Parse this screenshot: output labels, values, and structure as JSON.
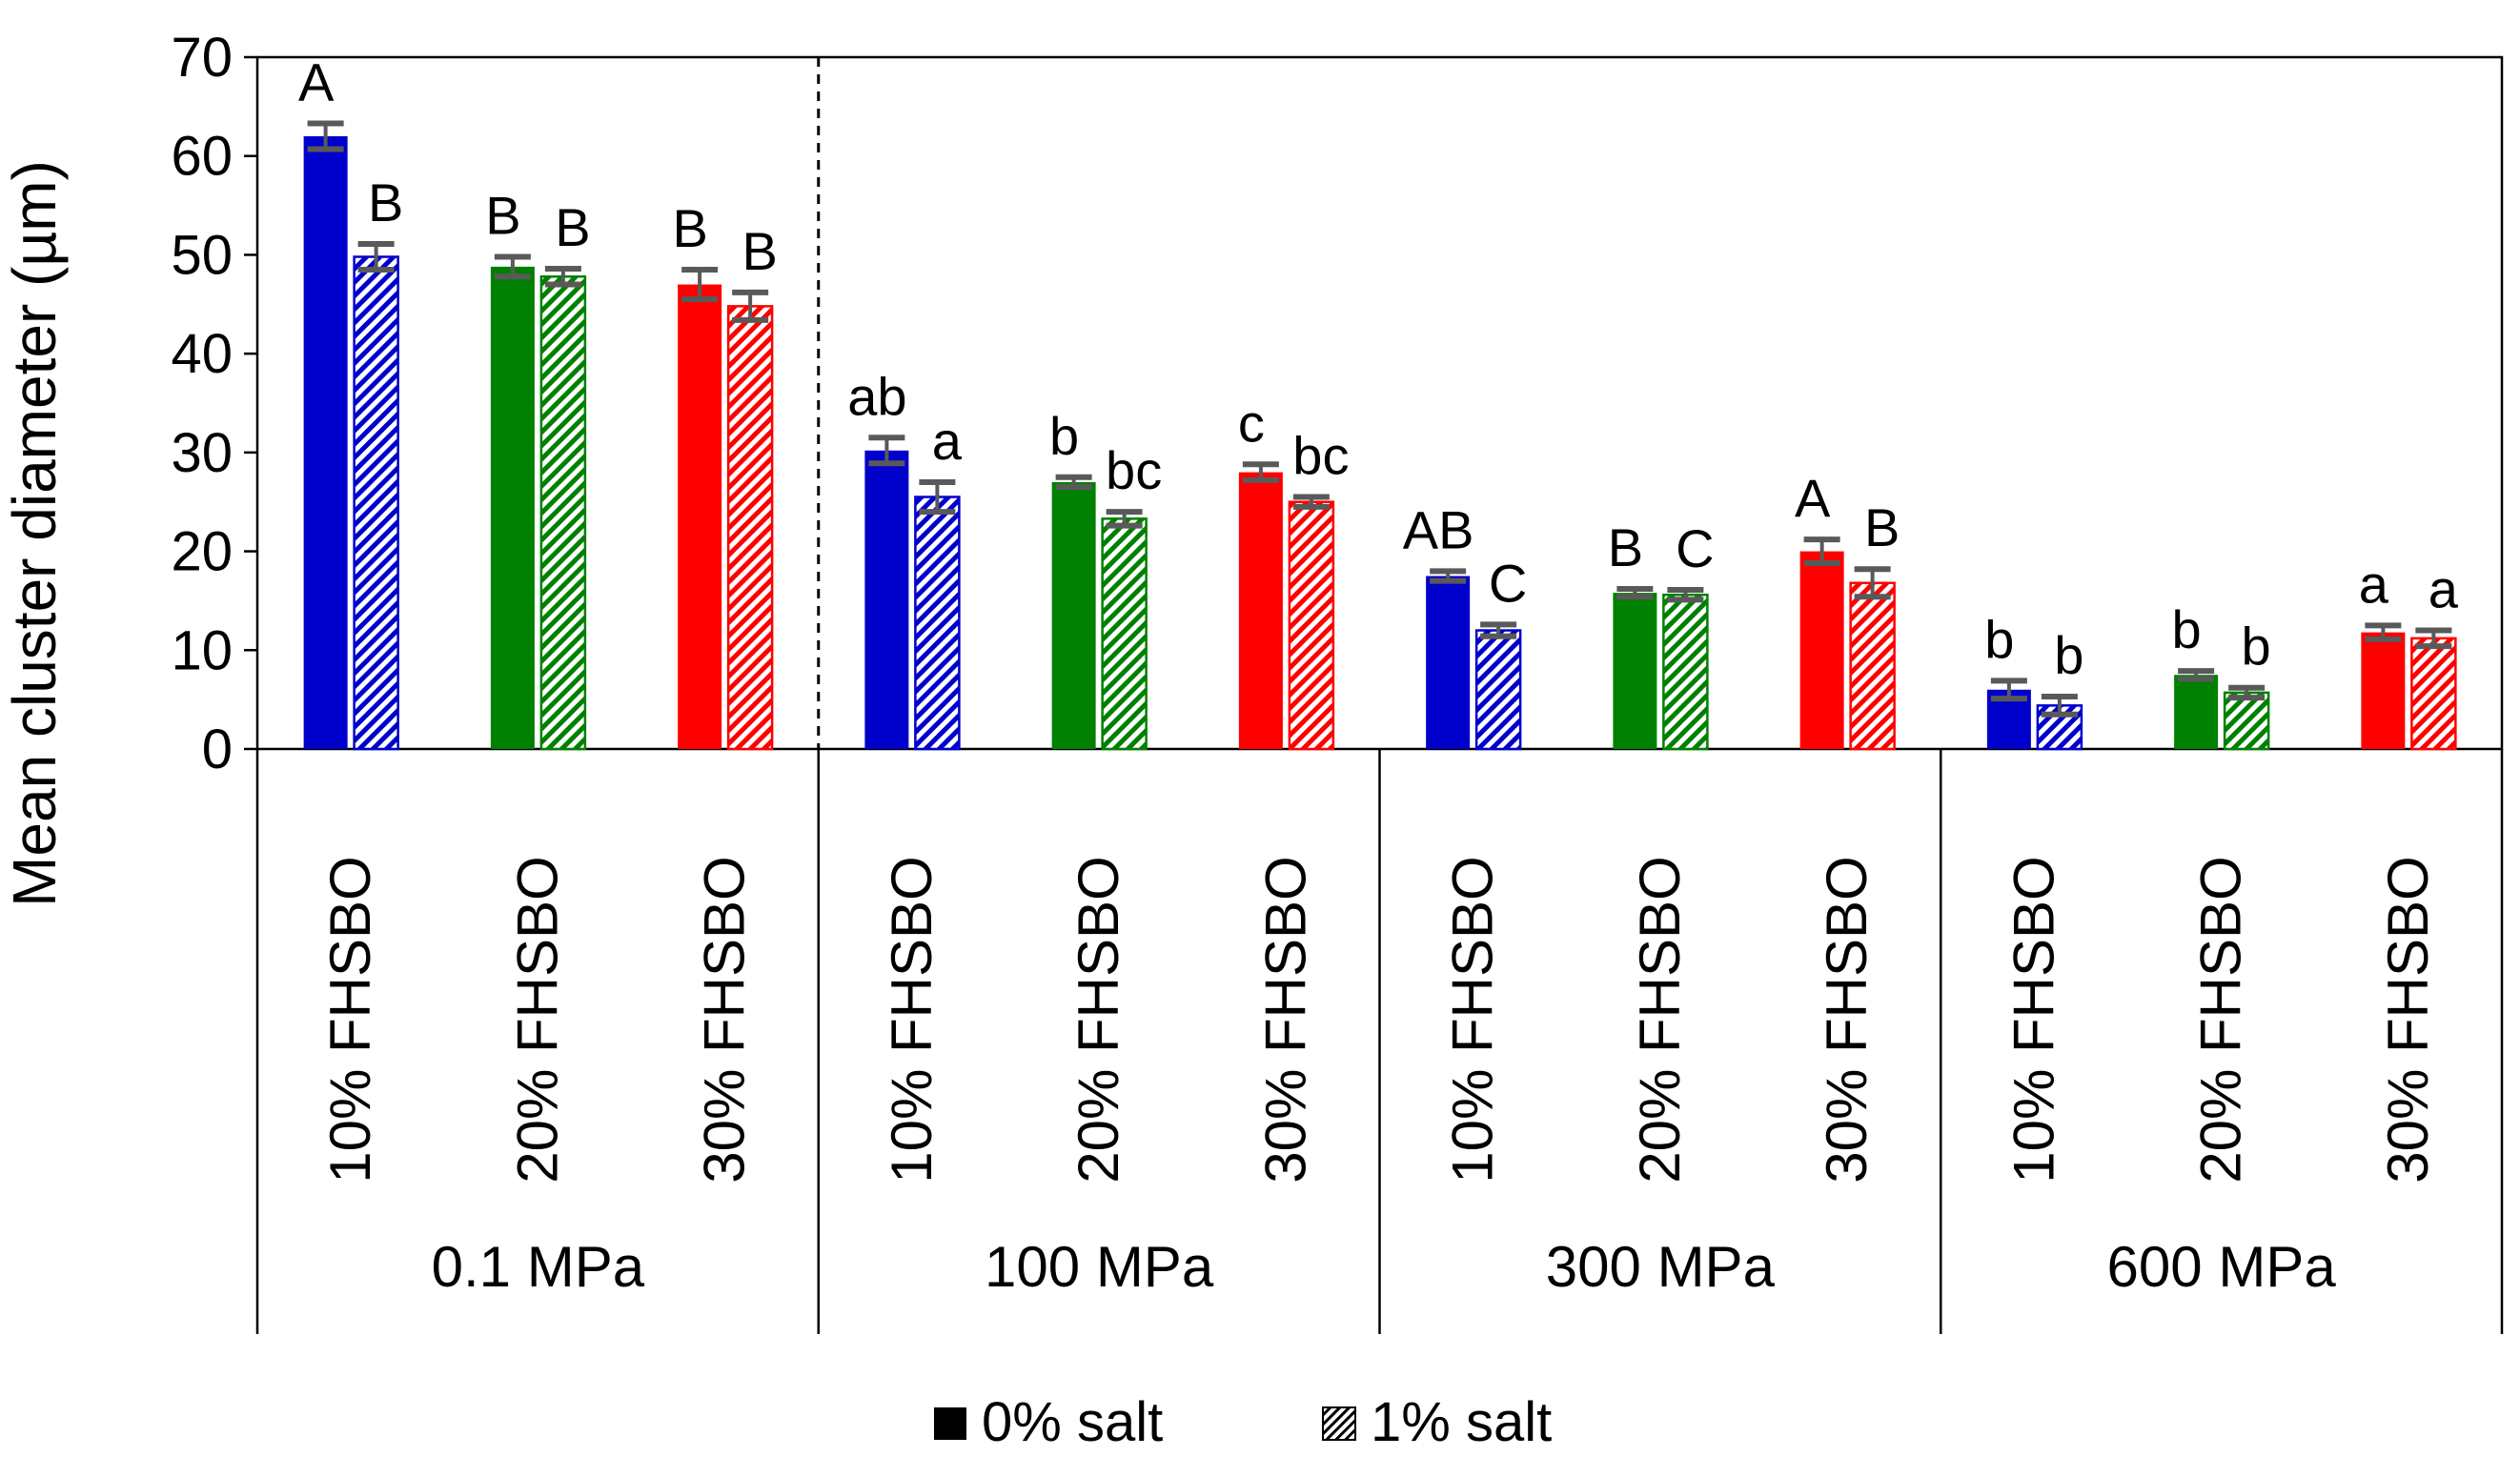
{
  "chart_data": {
    "type": "bar",
    "ylabel": "Mean cluster diameter (µm)",
    "ylim": [
      0,
      70
    ],
    "yticks": [
      0,
      10,
      20,
      30,
      40,
      50,
      60,
      70
    ],
    "ytick_labels": [
      "0",
      "10",
      "20",
      "30",
      "40",
      "50",
      "60",
      "70"
    ],
    "groups": [
      {
        "pressure": "0.1 MPa",
        "categories": [
          "10% FHSBO",
          "20% FHSBO",
          "30% FHSBO"
        ]
      },
      {
        "pressure": "100 MPa",
        "categories": [
          "10% FHSBO",
          "20% FHSBO",
          "30% FHSBO"
        ]
      },
      {
        "pressure": "300 MPa",
        "categories": [
          "10% FHSBO",
          "20% FHSBO",
          "30% FHSBO"
        ]
      },
      {
        "pressure": "600 MPa",
        "categories": [
          "10% FHSBO",
          "20% FHSBO",
          "30% FHSBO"
        ]
      }
    ],
    "category_colors": [
      "#0000CC",
      "#008000",
      "#FF0000"
    ],
    "series": [
      {
        "name": "0% salt",
        "pattern": "solid",
        "values": [
          62,
          48.8,
          47,
          30.2,
          27,
          28,
          17.5,
          15.8,
          20,
          6,
          7.5,
          11.8
        ],
        "errors": [
          1.3,
          1.0,
          1.5,
          1.3,
          0.5,
          0.8,
          0.5,
          0.4,
          1.2,
          0.9,
          0.4,
          0.7
        ],
        "letters": [
          "A",
          "B",
          "B",
          "ab",
          "b",
          "c",
          "AB",
          "B",
          "A",
          "b",
          "b",
          "a"
        ]
      },
      {
        "name": "1% salt",
        "pattern": "hatched",
        "values": [
          49.8,
          47.8,
          44.8,
          25.5,
          23.3,
          25,
          12,
          15.6,
          16.8,
          4.4,
          5.7,
          11.2
        ],
        "errors": [
          1.3,
          0.8,
          1.4,
          1.5,
          0.7,
          0.5,
          0.6,
          0.5,
          1.4,
          0.9,
          0.5,
          0.8
        ],
        "letters": [
          "B",
          "B",
          "B",
          "a",
          "bc",
          "bc",
          "C",
          "C",
          "B",
          "b",
          "b",
          "a"
        ]
      }
    ],
    "legend_position": "bottom-center"
  }
}
